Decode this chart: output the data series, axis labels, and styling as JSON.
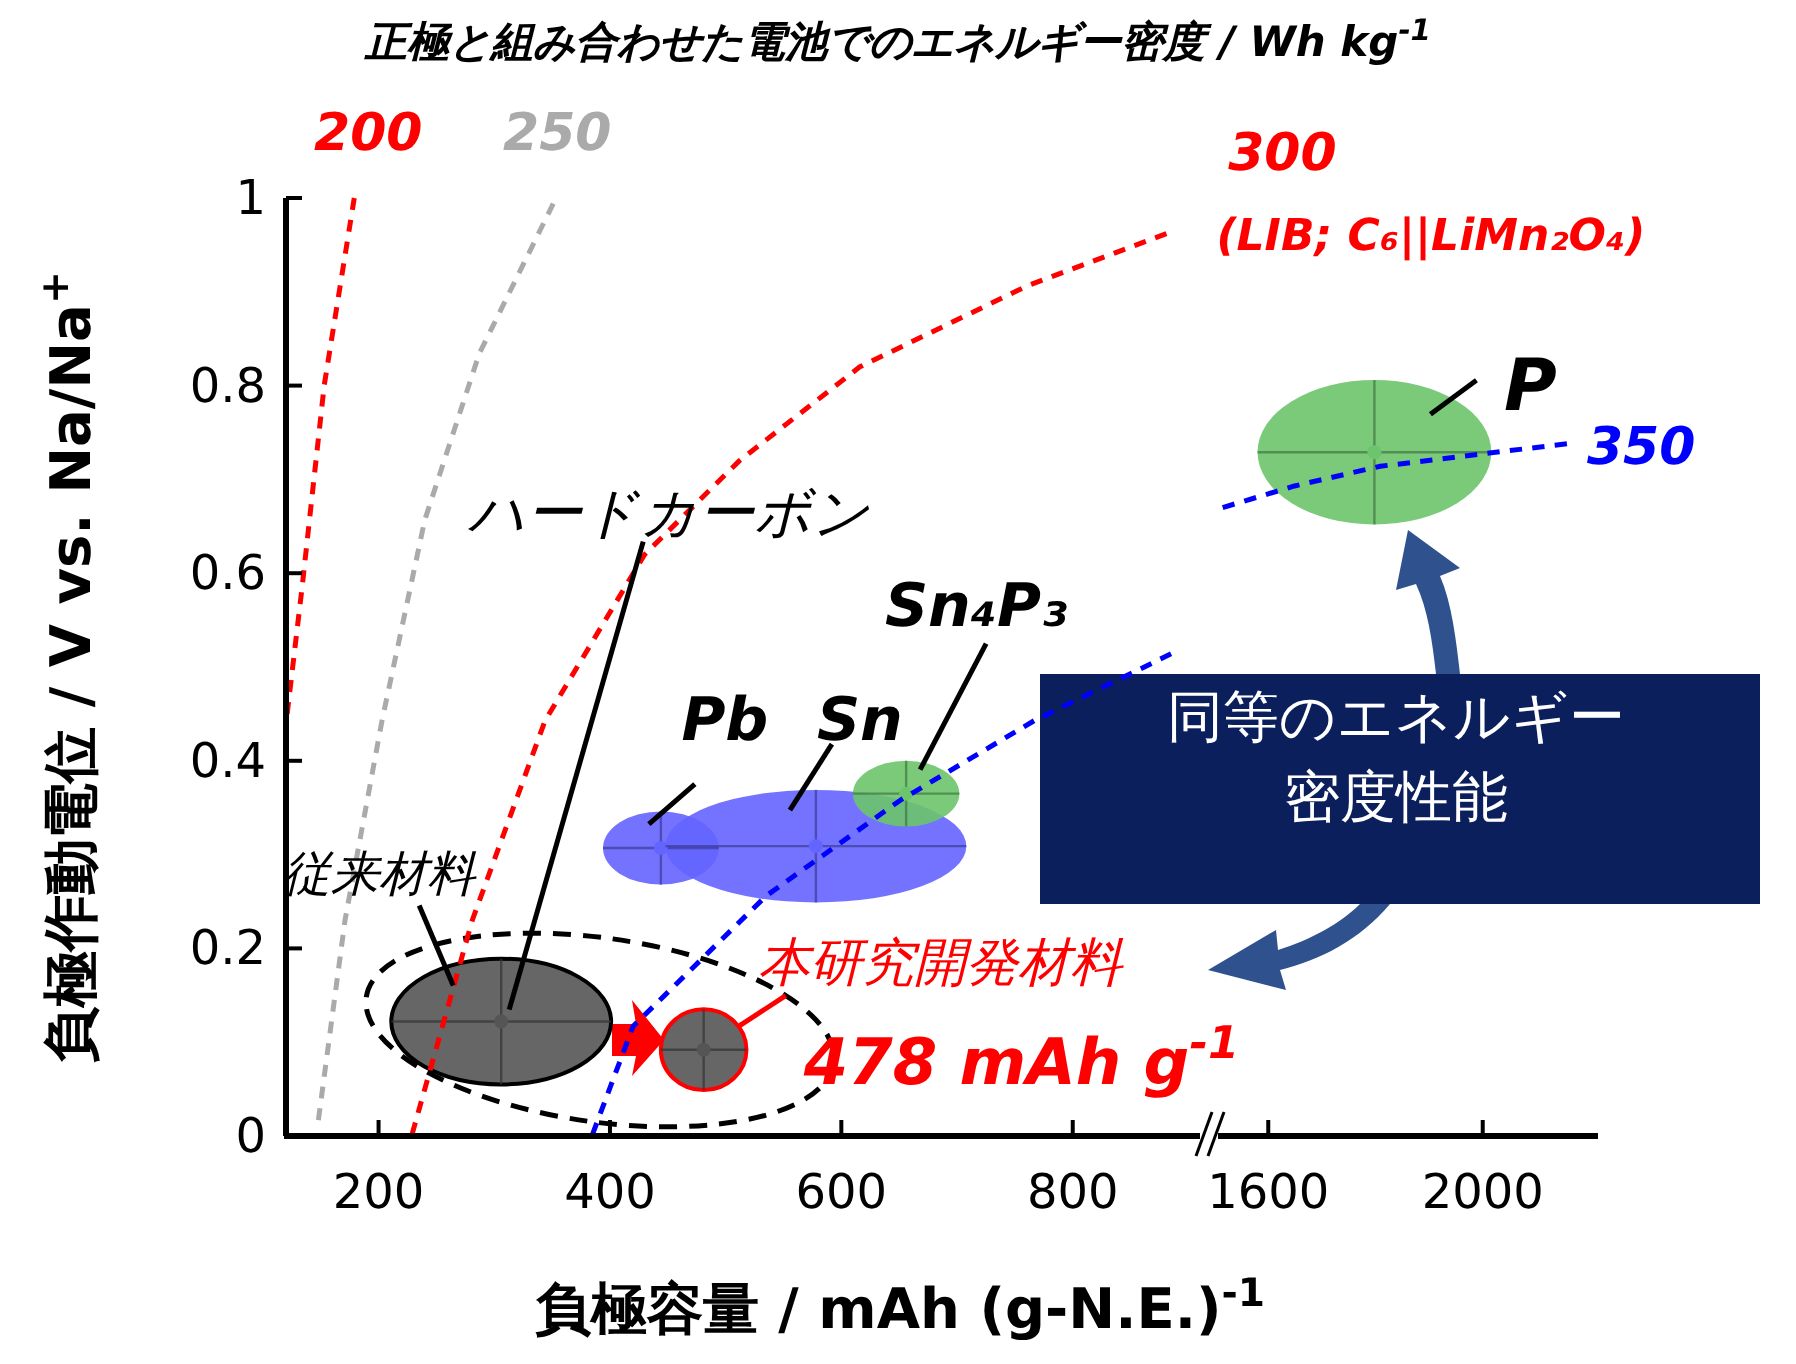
{
  "chart_data": [
    {
      "type": "scatter",
      "title": "正極と組み合わせた電池でのエネルギー密度 / Wh kg$^{-1}$",
      "xlabel": "負極容量 / mAh (g-N.E.)$^{-1}$",
      "ylabel": "負極作動電位 / V vs. Na/Na$^{+}$",
      "xlim": [
        120,
        910
      ],
      "xticks": [
        200,
        400,
        600,
        800
      ],
      "ylim": [
        0,
        1
      ],
      "yticks": [
        0,
        0.2,
        0.4,
        0.6,
        0.8,
        1
      ],
      "grid": false,
      "legend": false,
      "series": [
        {
          "type": "scatter",
          "x": [
            306,
            481,
            444,
            578,
            656
          ],
          "values": [
            0.122,
            0.092,
            0.307,
            0.309,
            0.365
          ],
          "xerrors": [
            95,
            37,
            50,
            130,
            46
          ],
          "errors": [
            0.067,
            0.043,
            0.039,
            0.06,
            0.035
          ],
          "colors": [
            "#555555",
            "#555555",
            "#6464ff",
            "#6464ff",
            "#6cc46c"
          ]
        },
        {
          "type": "line",
          "name": "200",
          "color": "#ff0000",
          "line_style": "dashed",
          "x": [
            121,
            134,
            153,
            179
          ],
          "values": [
            0.45,
            0.586,
            0.8,
            1.0
          ]
        },
        {
          "type": "line",
          "name": "250",
          "color": "#aaaaaa",
          "line_style": "dashed",
          "x": [
            148,
            171,
            203,
            240,
            287,
            351
          ],
          "values": [
            0.017,
            0.23,
            0.443,
            0.657,
            0.834,
            0.994
          ]
        },
        {
          "type": "line",
          "name": "300\n(LIB; C₆||LiMn₂O₄)",
          "color": "#ff0000",
          "line_style": "dashed",
          "x": [
            229,
            281,
            344,
            430,
            512,
            616,
            760,
            881
          ],
          "values": [
            0.002,
            0.23,
            0.443,
            0.62,
            0.72,
            0.82,
            0.906,
            0.962
          ]
        },
        {
          "type": "line",
          "color": "#0000ff",
          "line_style": "dashed",
          "x": [
            385,
            420,
            535,
            651,
            767,
            885
          ],
          "values": [
            0.002,
            0.117,
            0.256,
            0.358,
            0.443,
            0.514
          ]
        }
      ],
      "annotations": [
        {
          "text": "Pb",
          "x": 444,
          "y": 0.307
        },
        {
          "text": "Sn",
          "x": 578,
          "y": 0.309
        },
        {
          "text": "Sn₄P₃",
          "x": 656,
          "y": 0.365
        },
        {
          "text": "ハードカーボン",
          "x": 306,
          "y": 0.122
        },
        {
          "text": "従来材料",
          "x": 306,
          "y": 0.122
        },
        {
          "text": "本研究開発材料",
          "x": 481,
          "y": 0.092
        },
        {
          "text": "478 mAh g$^{-1}$",
          "x": 481,
          "y": 0.092
        },
        "同等のエネルギー密度性能"
      ]
    },
    {
      "type": "scatter",
      "xlim": [
        1510,
        2215
      ],
      "xticks": [
        1600,
        2000
      ],
      "ylim": [
        0,
        1
      ],
      "tick_labels": "x",
      "grid": false,
      "legend": false,
      "series": [
        {
          "type": "scatter",
          "x": [
            1798
          ],
          "values": [
            0.729
          ],
          "xerrors": [
            218
          ],
          "errors": [
            0.077
          ],
          "colors": [
            "#6cc46c"
          ]
        },
        {
          "type": "line",
          "name": "350",
          "color": "#0000ff",
          "line_style": "dashed",
          "x": [
            1515,
            1649,
            1809,
            1996,
            2157
          ],
          "values": [
            0.67,
            0.693,
            0.714,
            0.727,
            0.738
          ]
        }
      ],
      "annotations": [
        {
          "text": "P",
          "x": 1798,
          "y": 0.729
        }
      ]
    }
  ]
}
